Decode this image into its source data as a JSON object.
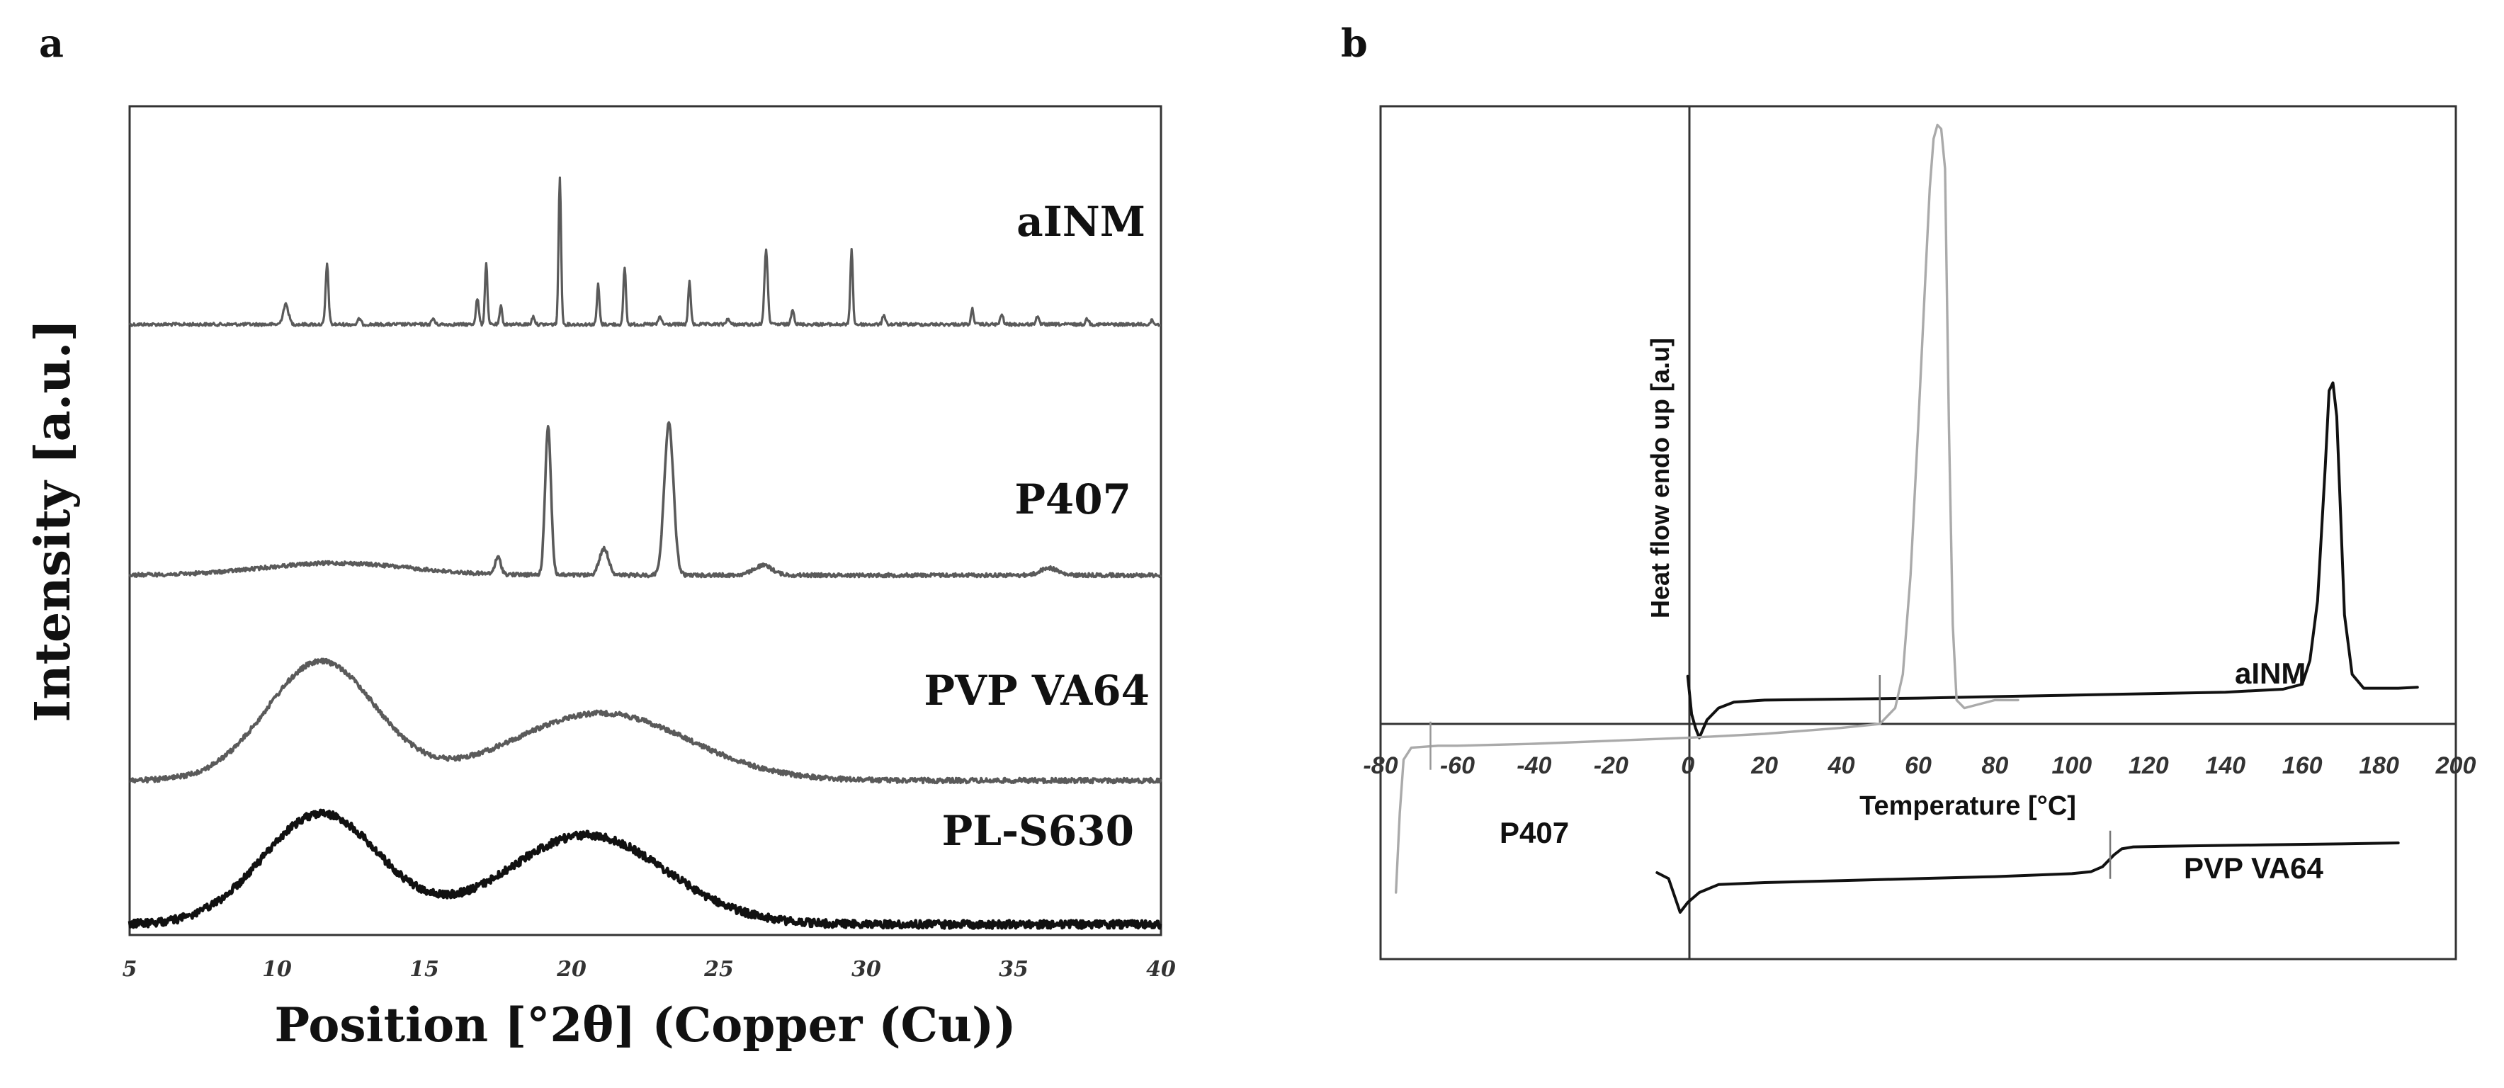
{
  "chart_data": [
    {
      "panel": "a",
      "type": "line",
      "title": "",
      "xlabel": "Position [°2θ] (Copper (Cu))",
      "ylabel": "Intensity [a.u.]",
      "xlim": [
        5,
        40
      ],
      "x_ticks": [
        "5",
        "10",
        "15",
        "20",
        "25",
        "30",
        "35",
        "40"
      ],
      "grid": false,
      "series": [
        {
          "name": "aINM",
          "color": "#5a5a5a",
          "baseline": 0.0,
          "peaks": [
            {
              "x": 10.3,
              "h": 0.1,
              "w": 0.13
            },
            {
              "x": 11.7,
              "h": 0.3,
              "w": 0.07
            },
            {
              "x": 12.8,
              "h": 0.03,
              "w": 0.07
            },
            {
              "x": 15.3,
              "h": 0.03,
              "w": 0.07
            },
            {
              "x": 16.8,
              "h": 0.13,
              "w": 0.07
            },
            {
              "x": 17.1,
              "h": 0.31,
              "w": 0.06
            },
            {
              "x": 17.6,
              "h": 0.09,
              "w": 0.06
            },
            {
              "x": 18.7,
              "h": 0.04,
              "w": 0.07
            },
            {
              "x": 19.6,
              "h": 0.74,
              "w": 0.06
            },
            {
              "x": 20.9,
              "h": 0.2,
              "w": 0.06
            },
            {
              "x": 21.8,
              "h": 0.29,
              "w": 0.06
            },
            {
              "x": 23.0,
              "h": 0.04,
              "w": 0.07
            },
            {
              "x": 24.0,
              "h": 0.22,
              "w": 0.06
            },
            {
              "x": 25.3,
              "h": 0.03,
              "w": 0.07
            },
            {
              "x": 26.6,
              "h": 0.37,
              "w": 0.08
            },
            {
              "x": 27.5,
              "h": 0.08,
              "w": 0.07
            },
            {
              "x": 29.5,
              "h": 0.38,
              "w": 0.06
            },
            {
              "x": 30.6,
              "h": 0.05,
              "w": 0.07
            },
            {
              "x": 33.6,
              "h": 0.08,
              "w": 0.06
            },
            {
              "x": 34.6,
              "h": 0.05,
              "w": 0.07
            },
            {
              "x": 35.8,
              "h": 0.04,
              "w": 0.07
            },
            {
              "x": 37.5,
              "h": 0.03,
              "w": 0.07
            },
            {
              "x": 39.7,
              "h": 0.02,
              "w": 0.07
            }
          ],
          "humps": []
        },
        {
          "name": "P407",
          "color": "#5a5a5a",
          "baseline": 0.0,
          "peaks": [
            {
              "x": 17.5,
              "h": 0.07,
              "w": 0.14
            },
            {
              "x": 19.2,
              "h": 0.62,
              "w": 0.14
            },
            {
              "x": 21.1,
              "h": 0.11,
              "w": 0.22
            },
            {
              "x": 23.3,
              "h": 0.63,
              "w": 0.22
            },
            {
              "x": 26.5,
              "h": 0.04,
              "w": 0.45
            },
            {
              "x": 36.2,
              "h": 0.03,
              "w": 0.4
            }
          ],
          "humps": [
            {
              "x": 12.0,
              "h": 0.05,
              "w": 3.5
            }
          ]
        },
        {
          "name": "PVP VA64",
          "color": "#5a5a5a",
          "baseline": 0.0,
          "peaks": [],
          "humps": [
            {
              "x": 11.5,
              "h": 0.6,
              "w": 2.6
            },
            {
              "x": 21.0,
              "h": 0.34,
              "w": 4.2
            }
          ]
        },
        {
          "name": "PL-S630",
          "color": "#111111",
          "baseline": 0.0,
          "peaks": [],
          "humps": [
            {
              "x": 11.5,
              "h": 0.52,
              "w": 2.8
            },
            {
              "x": 20.5,
              "h": 0.42,
              "w": 3.8
            }
          ]
        }
      ]
    },
    {
      "panel": "b",
      "type": "line",
      "title": "",
      "xlabel": "Temperature [°C]",
      "ylabel": "Heat flow endo up [a.u]",
      "xlim": [
        -80,
        200
      ],
      "x_ticks": [
        "-80",
        "-60",
        "-40",
        "-20",
        "0",
        "20",
        "40",
        "60",
        "80",
        "100",
        "120",
        "140",
        "160",
        "180",
        "200"
      ],
      "grid": false,
      "series": [
        {
          "name": "aINM",
          "color": "#111111",
          "points": [
            [
              0,
              0.24
            ],
            [
              1,
              0.05
            ],
            [
              2,
              -0.02
            ],
            [
              3,
              -0.07
            ],
            [
              5,
              0.02
            ],
            [
              8,
              0.08
            ],
            [
              12,
              0.11
            ],
            [
              20,
              0.12
            ],
            [
              40,
              0.125
            ],
            [
              60,
              0.13
            ],
            [
              100,
              0.145
            ],
            [
              140,
              0.16
            ],
            [
              155,
              0.175
            ],
            [
              160,
              0.2
            ],
            [
              162,
              0.32
            ],
            [
              164,
              0.62
            ],
            [
              166,
              1.3
            ],
            [
              167,
              1.68
            ],
            [
              168,
              1.72
            ],
            [
              169,
              1.55
            ],
            [
              170,
              1.05
            ],
            [
              171,
              0.55
            ],
            [
              173,
              0.25
            ],
            [
              176,
              0.18
            ],
            [
              185,
              0.18
            ],
            [
              190,
              0.185
            ]
          ],
          "markers": [
            [
              50,
              0.125
            ]
          ]
        },
        {
          "name": "P407",
          "color": "#aaaaaa",
          "points": [
            [
              -76,
              -0.85
            ],
            [
              -75,
              -0.45
            ],
            [
              -74,
              -0.18
            ],
            [
              -72,
              -0.12
            ],
            [
              -65,
              -0.11
            ],
            [
              -60,
              -0.11
            ],
            [
              -40,
              -0.1
            ],
            [
              -20,
              -0.085
            ],
            [
              0,
              -0.07
            ],
            [
              20,
              -0.05
            ],
            [
              40,
              -0.02
            ],
            [
              50,
              0.0
            ],
            [
              54,
              0.08
            ],
            [
              56,
              0.25
            ],
            [
              58,
              0.75
            ],
            [
              60,
              1.5
            ],
            [
              62,
              2.3
            ],
            [
              63,
              2.7
            ],
            [
              64,
              2.95
            ],
            [
              65,
              3.02
            ],
            [
              66,
              3.0
            ],
            [
              67,
              2.8
            ],
            [
              68,
              1.5
            ],
            [
              69,
              0.5
            ],
            [
              70,
              0.12
            ],
            [
              72,
              0.08
            ],
            [
              76,
              0.1
            ],
            [
              80,
              0.12
            ],
            [
              86,
              0.12
            ]
          ],
          "markers": [
            [
              -67,
              -0.11
            ]
          ]
        },
        {
          "name": "PVP VA64",
          "color": "#111111",
          "points": [
            [
              -8,
              -0.75
            ],
            [
              -5,
              -0.78
            ],
            [
              -2,
              -0.95
            ],
            [
              0,
              -0.9
            ],
            [
              3,
              -0.85
            ],
            [
              8,
              -0.81
            ],
            [
              20,
              -0.8
            ],
            [
              40,
              -0.79
            ],
            [
              60,
              -0.78
            ],
            [
              80,
              -0.77
            ],
            [
              100,
              -0.755
            ],
            [
              105,
              -0.745
            ],
            [
              108,
              -0.72
            ],
            [
              111,
              -0.66
            ],
            [
              113,
              -0.63
            ],
            [
              116,
              -0.62
            ],
            [
              130,
              -0.615
            ],
            [
              150,
              -0.61
            ],
            [
              170,
              -0.605
            ],
            [
              185,
              -0.6
            ]
          ],
          "markers": [
            [
              110,
              -0.66
            ]
          ]
        }
      ]
    }
  ],
  "panels": {
    "a": {
      "label": "a"
    },
    "b": {
      "label": "b"
    }
  }
}
